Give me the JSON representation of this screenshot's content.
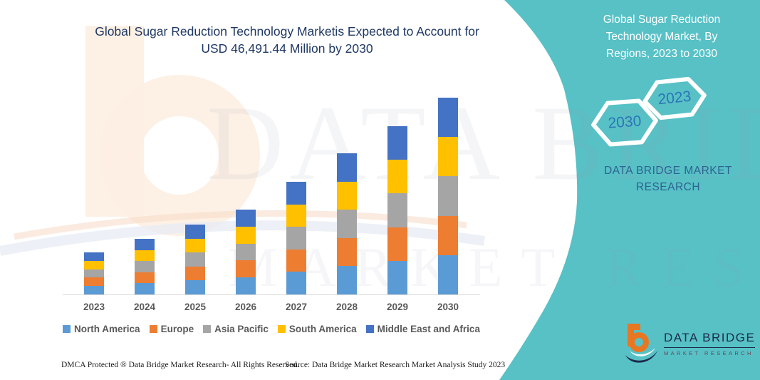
{
  "title": {
    "full": "Global Sugar Reduction Technology Marketis Expected to Account for USD 46,491.44 Million by 2030",
    "line1": "Global Sugar Reduction Technology Marketis Expected to Account for",
    "line2": "USD 46,491.44 Million by 2030"
  },
  "panel": {
    "heading": "Global Sugar Reduction Technology Market, By Regions, 2023 to 2030",
    "hexagons": [
      {
        "label": "2023"
      },
      {
        "label": "2030"
      }
    ],
    "brand": "DATA BRIDGE MARKET RESEARCH"
  },
  "logo": {
    "name": "DATA BRIDGE",
    "subname": "MARKET RESEARCH"
  },
  "watermark": {
    "line1": "DATA BRIDGE",
    "line2": "MARKET RESEARCH"
  },
  "footer": {
    "left": "DMCA Protected ® Data Bridge Market Research-  All Rights Reserved.",
    "right": "Source: Data Bridge Market Research  Market Analysis Study 2023"
  },
  "colors": {
    "teal_panel": "#57c1c6",
    "title_blue": "#1f3864",
    "axis_label_gray": "#595959",
    "axis_line_gray": "#d9d9d9",
    "hex_year_blue": "#2e75b6",
    "panel_brand_blue": "#2f6391",
    "logo_navy": "#1b2a4a",
    "logo_orange": "#e87722"
  },
  "chart_data": {
    "type": "bar",
    "stacked": true,
    "title": "Global Sugar Reduction Technology Market, By Regions, 2023 to 2030",
    "unit": "USD Million",
    "stated_total_2030": 46491.44,
    "categories": [
      "2023",
      "2024",
      "2025",
      "2026",
      "2027",
      "2028",
      "2029",
      "2030"
    ],
    "series": [
      {
        "name": "North America",
        "color": "#5B9BD5",
        "values": [
          1980,
          2630,
          3300,
          4010,
          5320,
          6670,
          7950,
          9298.29
        ]
      },
      {
        "name": "Europe",
        "color": "#ED7D31",
        "values": [
          1980,
          2630,
          3300,
          4010,
          5320,
          6670,
          7950,
          9298.29
        ]
      },
      {
        "name": "Asia Pacific",
        "color": "#A5A5A5",
        "values": [
          1980,
          2630,
          3300,
          4010,
          5320,
          6670,
          7950,
          9298.29
        ]
      },
      {
        "name": "South America",
        "color": "#FFC000",
        "values": [
          1980,
          2630,
          3300,
          4010,
          5320,
          6670,
          7950,
          9298.29
        ]
      },
      {
        "name": "Middle East and Africa",
        "color": "#4472C4",
        "values": [
          1980,
          2630,
          3300,
          4010,
          5320,
          6670,
          7950,
          9298.29
        ]
      }
    ],
    "estimated_totals": [
      9900,
      13150,
      16500,
      20050,
      26600,
      33350,
      39750,
      46491.44
    ],
    "xlabel": "",
    "ylabel": "",
    "ylim": [
      0,
      46491.44
    ],
    "grid": false,
    "legend_position": "bottom"
  }
}
